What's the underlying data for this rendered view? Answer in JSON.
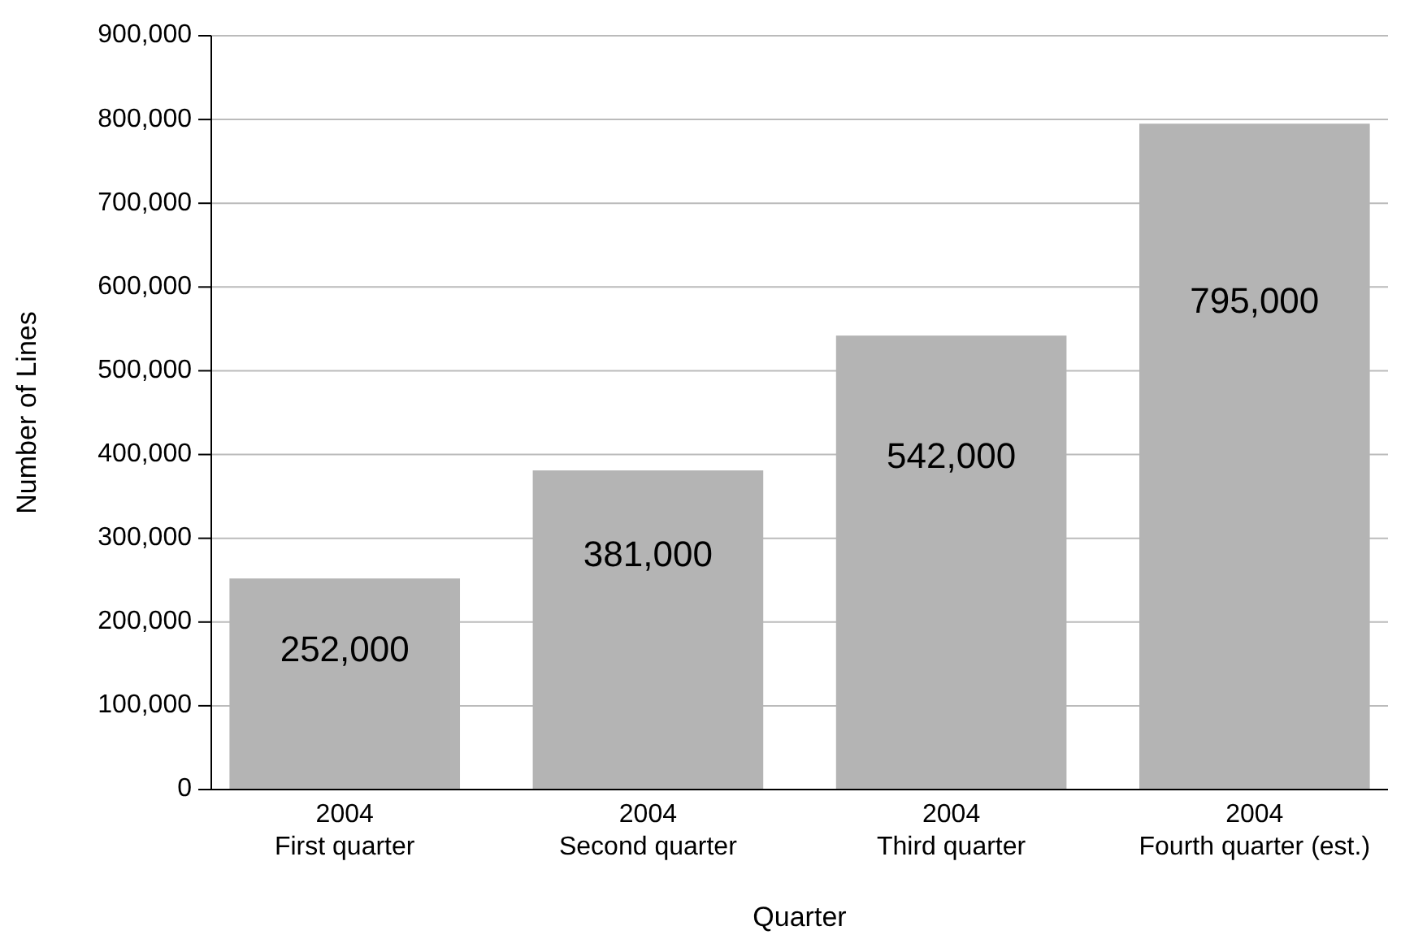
{
  "chart_data": {
    "type": "bar",
    "xlabel": "Quarter",
    "ylabel": "Number of Lines",
    "categories": [
      "2004\nFirst quarter",
      "2004\nSecond quarter",
      "2004\nThird quarter",
      "2004\nFourth quarter (est.)"
    ],
    "values": [
      252000,
      381000,
      542000,
      795000
    ],
    "color": "#b4b4b4",
    "ylim": [
      0,
      900000
    ],
    "yticks": [
      {
        "value": 0,
        "label": "0"
      },
      {
        "value": 100000,
        "label": "100,000"
      },
      {
        "value": 200000,
        "label": "200,000"
      },
      {
        "value": 300000,
        "label": "300,000"
      },
      {
        "value": 400000,
        "label": "400,000"
      },
      {
        "value": 500000,
        "label": "500,000"
      },
      {
        "value": 600000,
        "label": "600,000"
      },
      {
        "value": 700000,
        "label": "700,000"
      },
      {
        "value": 800000,
        "label": "800,000"
      },
      {
        "value": 900000,
        "label": "900,000"
      }
    ],
    "value_labels": [
      "252,000",
      "381,000",
      "542,000",
      "795,000"
    ],
    "grid": "y"
  }
}
